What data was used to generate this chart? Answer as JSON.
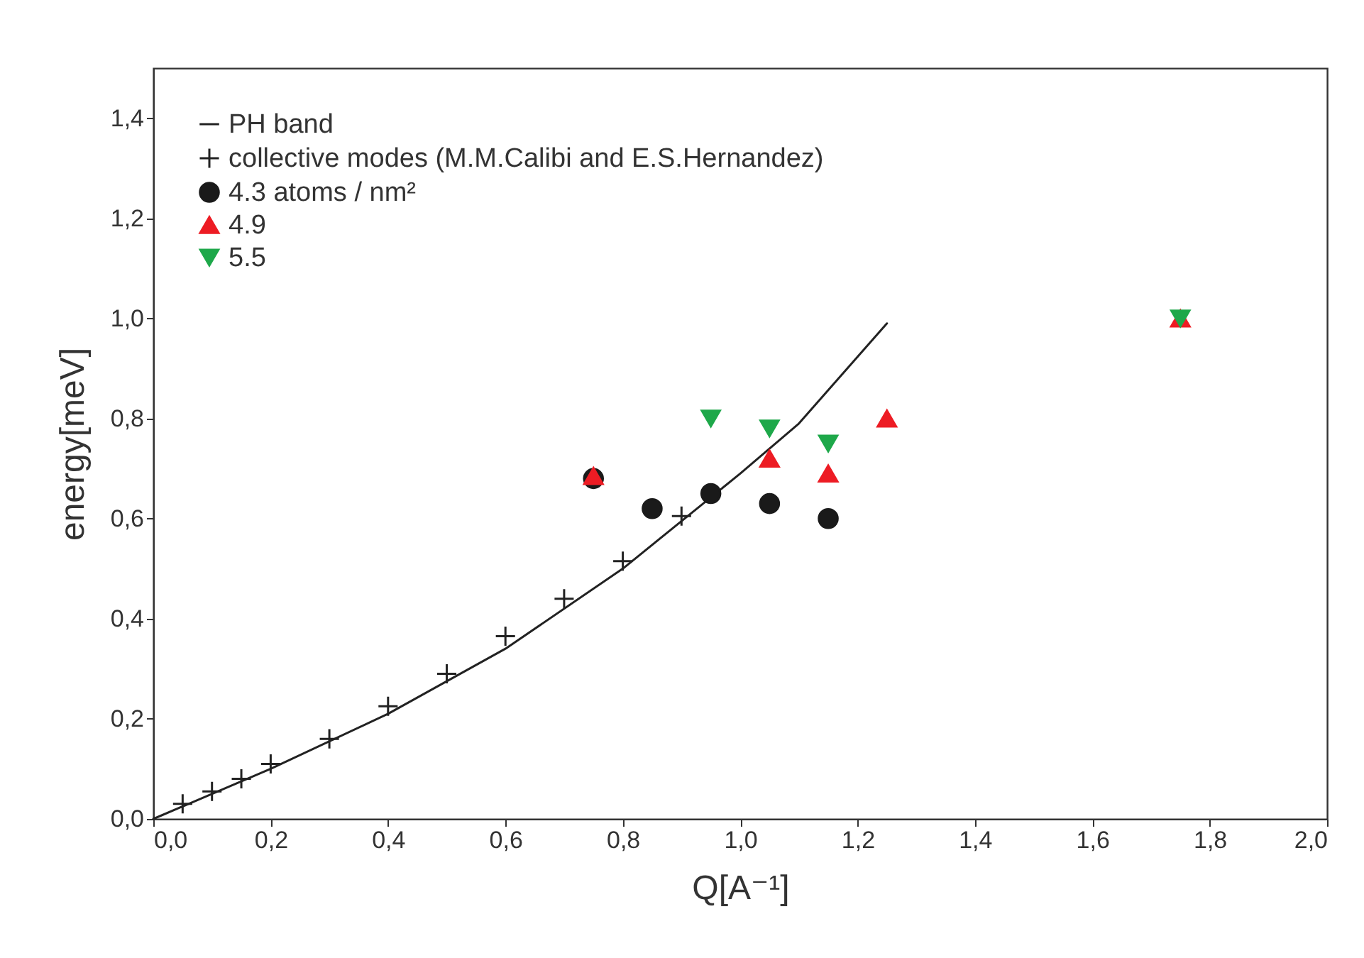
{
  "chart_data": {
    "type": "scatter",
    "xlabel": "Q[A⁻¹]",
    "ylabel": "energy[meV]",
    "xlim": [
      0,
      2
    ],
    "ylim": [
      0,
      1.5
    ],
    "xticks": [
      {
        "value": 0,
        "label": "0,0"
      },
      {
        "value": 0.2,
        "label": "0,2"
      },
      {
        "value": 0.4,
        "label": "0,4"
      },
      {
        "value": 0.6,
        "label": "0,6"
      },
      {
        "value": 0.8,
        "label": "0,8"
      },
      {
        "value": 1,
        "label": "1,0"
      },
      {
        "value": 1.2,
        "label": "1,2"
      },
      {
        "value": 1.4,
        "label": "1,4"
      },
      {
        "value": 1.6,
        "label": "1,6"
      },
      {
        "value": 1.8,
        "label": "1,8"
      },
      {
        "value": 2,
        "label": "2,0"
      }
    ],
    "yticks": [
      {
        "value": 0,
        "label": "0,0"
      },
      {
        "value": 0.2,
        "label": "0,2"
      },
      {
        "value": 0.4,
        "label": "0,4"
      },
      {
        "value": 0.6,
        "label": "0,6"
      },
      {
        "value": 0.8,
        "label": "0,8"
      },
      {
        "value": 1,
        "label": "1,0"
      },
      {
        "value": 1.2,
        "label": "1,2"
      },
      {
        "value": 1.4,
        "label": "1,4"
      }
    ],
    "grid": false,
    "legend": "top left",
    "series": [
      {
        "name": "PH band",
        "type": "line",
        "line_style": "solid",
        "marker": "none",
        "color": "#222222",
        "x": [
          0,
          0.2,
          0.4,
          0.6,
          0.8,
          1.0,
          1.1,
          1.25
        ],
        "values": [
          0,
          0.1,
          0.21,
          0.34,
          0.5,
          0.69,
          0.79,
          0.99
        ]
      },
      {
        "name": "collective modes (M.M.Calibi and E.S.Hernandez)",
        "marker": "cross",
        "color": "#222222",
        "x": [
          0.05,
          0.1,
          0.15,
          0.2,
          0.3,
          0.4,
          0.5,
          0.6,
          0.7,
          0.8,
          0.9
        ],
        "values": [
          0.03,
          0.055,
          0.08,
          0.11,
          0.16,
          0.225,
          0.29,
          0.365,
          0.44,
          0.515,
          0.605
        ]
      },
      {
        "name": "4.3 atoms / nm²",
        "marker": "circle",
        "color": "#1a1a1a",
        "x": [
          0.75,
          0.85,
          0.95,
          1.05,
          1.15
        ],
        "values": [
          0.68,
          0.62,
          0.65,
          0.63,
          0.6
        ]
      },
      {
        "name": "4.9",
        "marker": "triangle",
        "color": "#ed1c24",
        "x": [
          0.75,
          1.05,
          1.15,
          1.25,
          1.75
        ],
        "values": [
          0.685,
          0.72,
          0.69,
          0.8,
          1.0
        ]
      },
      {
        "name": "5.5",
        "marker": "triangle-down",
        "color": "#1ea84a",
        "x": [
          0.95,
          1.05,
          1.15,
          1.75
        ],
        "values": [
          0.8,
          0.78,
          0.75,
          1.0
        ]
      }
    ]
  }
}
